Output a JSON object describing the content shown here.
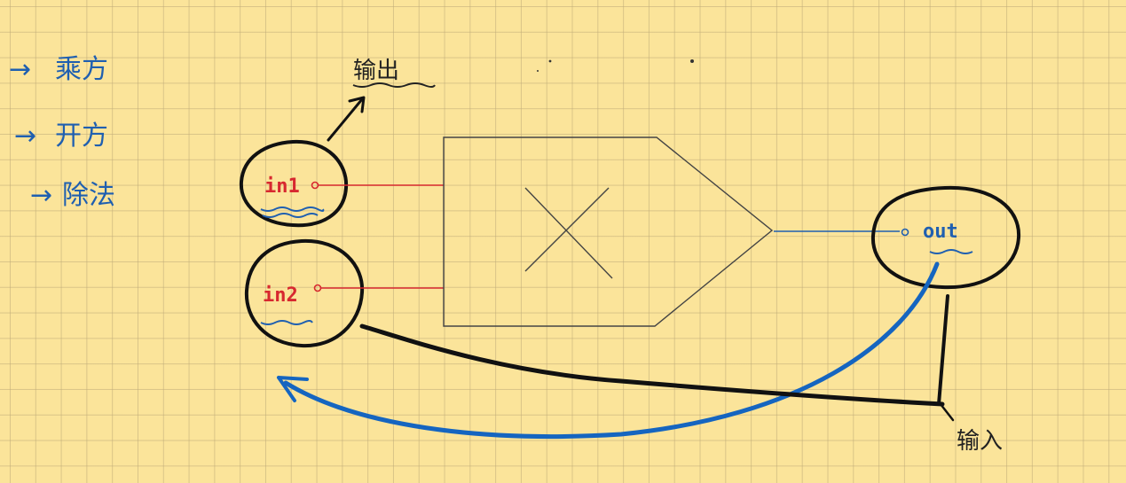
{
  "notes": {
    "items": [
      {
        "arrow": "→",
        "text": "乘方"
      },
      {
        "arrow": "→",
        "text": "开方"
      },
      {
        "arrow": "→",
        "text": "除法"
      }
    ]
  },
  "node": {
    "in1_label": "in1",
    "in2_label": "in2",
    "out_label": "out"
  },
  "annotations": {
    "output_label": "输出",
    "input_label": "输入"
  },
  "colors": {
    "paper": "#fbe49a",
    "grid": "#c9b278",
    "ink_black": "#111111",
    "ink_red": "#d7282f",
    "ink_blue": "#1f5fb0",
    "arrow_blue": "#1565c0"
  },
  "icons": {
    "operator": "multiply-x-icon"
  }
}
